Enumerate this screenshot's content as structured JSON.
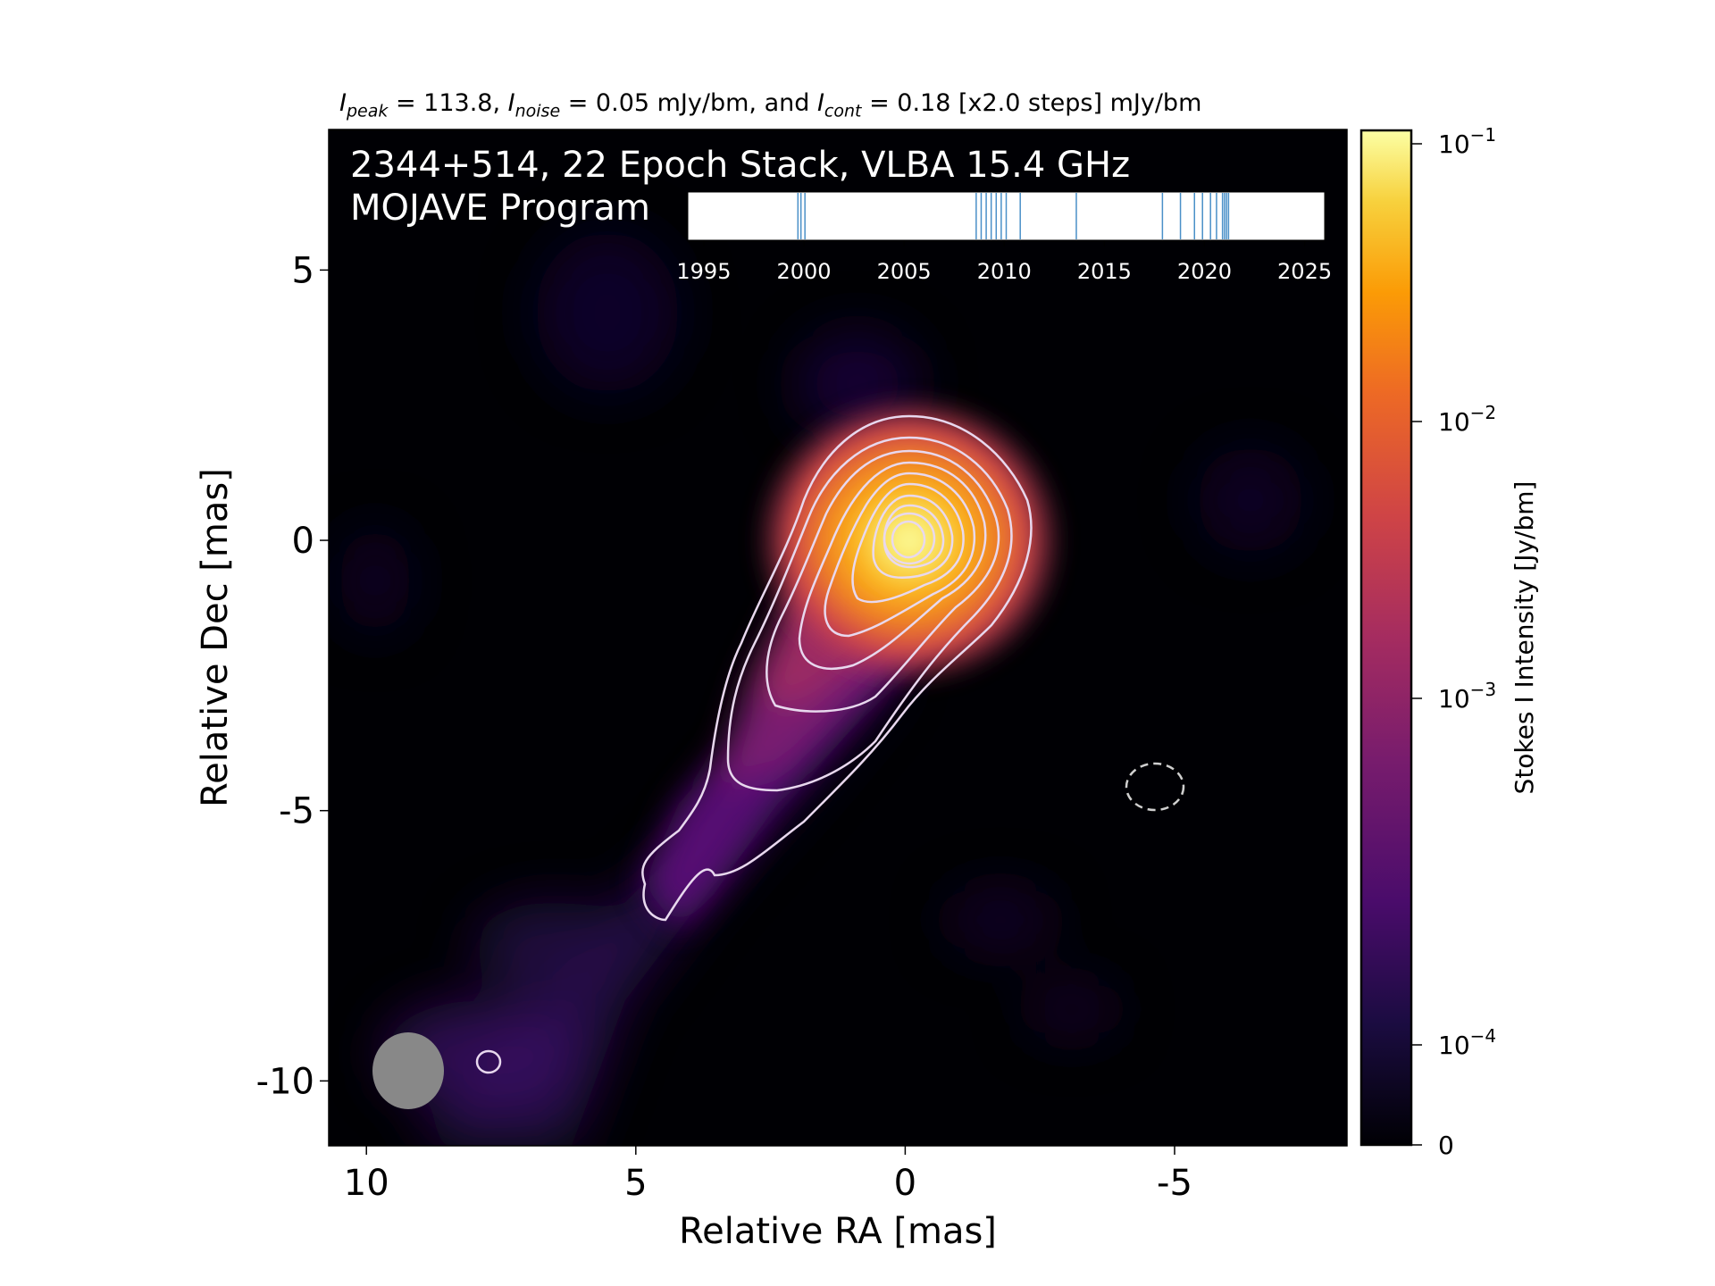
{
  "header": {
    "peak_label": "I",
    "peak_sub": "peak",
    "peak_value": " = 113.8, ",
    "noise_label": "I",
    "noise_sub": "noise",
    "noise_value": " = 0.05 mJy/bm, and ",
    "cont_label": "I",
    "cont_sub": "cont",
    "cont_value": " = 0.18 [x2.0 steps] mJy/bm"
  },
  "chart_data": {
    "type": "heatmap",
    "title_line1": "2344+514, 22 Epoch Stack, VLBA 15.4 GHz",
    "title_line2": "MOJAVE Program",
    "xlabel": "Relative RA [mas]",
    "ylabel": "Relative Dec [mas]",
    "xlim": [
      10.7,
      -8.2
    ],
    "ylim": [
      -11.2,
      7.6
    ],
    "x_ticks": [
      10,
      5,
      0,
      -5
    ],
    "x_tick_labels": [
      "10",
      "5",
      "0",
      "-5"
    ],
    "y_ticks": [
      5,
      0,
      -5,
      -10
    ],
    "y_tick_labels": [
      "5",
      "0",
      "-5",
      "-10"
    ],
    "colorbar": {
      "label": "Stokes I Intensity [Jy/bm]",
      "scale": "log",
      "ticks": [
        {
          "base": "10",
          "exp": "−1",
          "value": 0.1
        },
        {
          "base": "10",
          "exp": "−2",
          "value": 0.01
        },
        {
          "base": "10",
          "exp": "−3",
          "value": 0.001
        },
        {
          "base": "10",
          "exp": "−4",
          "value": 0.0001
        },
        {
          "base": "0",
          "exp": "",
          "value": 0
        }
      ],
      "colormap": "inferno"
    },
    "epoch_timeline": {
      "xlim": [
        1994.2,
        2026.0
      ],
      "ticks": [
        1995,
        2000,
        2005,
        2010,
        2015,
        2020,
        2025
      ],
      "tick_labels": [
        "1995",
        "2000",
        "2005",
        "2010",
        "2015",
        "2020",
        "2025"
      ],
      "epochs": [
        1999.7,
        1999.85,
        2000.05,
        2008.6,
        2008.85,
        2009.1,
        2009.35,
        2009.6,
        2009.85,
        2010.1,
        2010.8,
        2013.6,
        2017.9,
        2018.8,
        2019.5,
        2019.9,
        2020.3,
        2020.6,
        2020.9,
        2021.0,
        2021.1,
        2021.2
      ],
      "line_color": "#4a90c8"
    },
    "beam": {
      "ra": 9.2,
      "dec": -9.95,
      "major_mas": 1.4,
      "minor_mas": 1.3,
      "color": "#888888"
    },
    "negative_contour": {
      "ra": -4.5,
      "dec": -4.65
    },
    "contour_color": "#e8d8ee",
    "colors": {
      "background": "#000004",
      "low": "#2c0a55",
      "mid": "#b2324b",
      "high": "#f89b10",
      "peak": "#fcffa4"
    }
  }
}
